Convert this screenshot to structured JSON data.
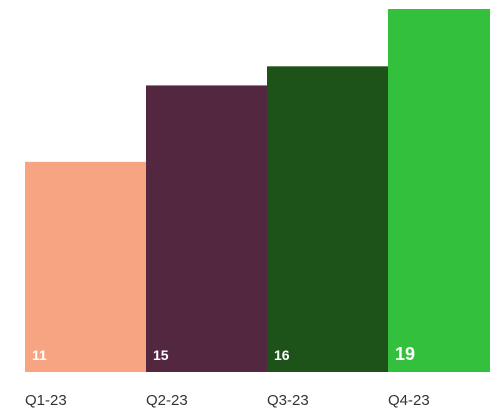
{
  "chart_data": {
    "type": "bar",
    "title": "",
    "xlabel": "",
    "ylabel": "",
    "categories": [
      "Q1-23",
      "Q2-23",
      "Q3-23",
      "Q4-23"
    ],
    "values": [
      11,
      15,
      16,
      19
    ],
    "value_labels": [
      "11",
      "15",
      "16",
      "19"
    ],
    "colors": [
      "#f7a482",
      "#542741",
      "#1d5219",
      "#33c13d"
    ],
    "label_color": "#ffffff",
    "category_label_color": "#333333",
    "ylim": [
      0,
      19
    ],
    "grid": false,
    "legend": "none",
    "highlight_index": 3
  }
}
